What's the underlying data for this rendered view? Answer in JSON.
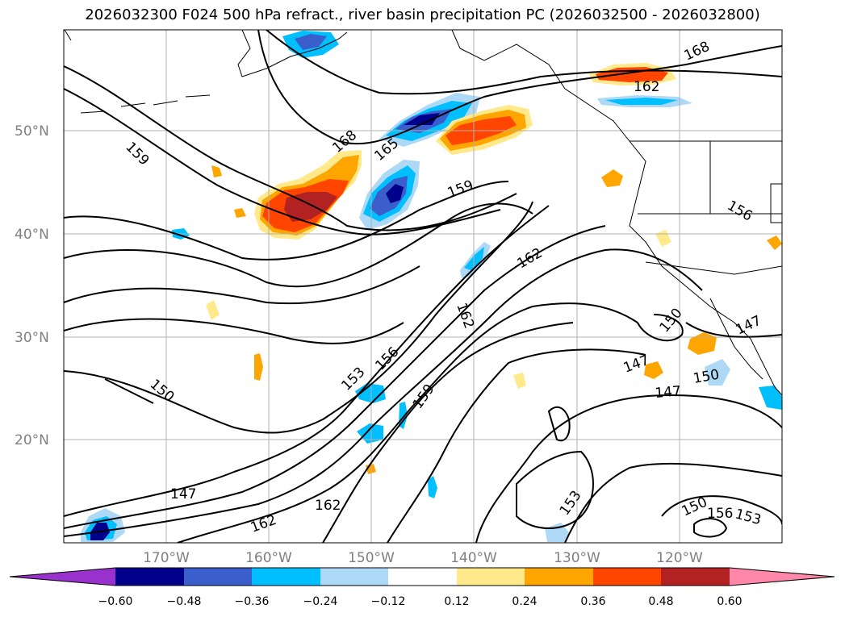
{
  "title": "2026032300 F024 500 hPa refract., river basin precipitation PC (2026032500 - 2026032800)",
  "map": {
    "lat_labels": [
      "50°N",
      "40°N",
      "30°N",
      "20°N"
    ],
    "lon_labels": [
      "170°W",
      "160°W",
      "150°W",
      "140°W",
      "130°W",
      "120°W"
    ],
    "contour_labels": [
      "159",
      "168",
      "165",
      "159",
      "162",
      "168",
      "162",
      "156",
      "162",
      "153",
      "156",
      "159",
      "150",
      "147",
      "150",
      "147",
      "147",
      "150",
      "162",
      "153",
      "147",
      "162",
      "150",
      "156",
      "153"
    ]
  },
  "colorbar": {
    "colors": [
      "#9932cc",
      "#00008b",
      "#3a5fcd",
      "#00bfff",
      "#add8f6",
      "#ffffff",
      "#ffe98a",
      "#ffa500",
      "#ff4500",
      "#b22222",
      "#ff88aa"
    ],
    "tick_labels": [
      "−0.60",
      "−0.48",
      "−0.36",
      "−0.24",
      "−0.12",
      "0.12",
      "0.24",
      "0.36",
      "0.48",
      "0.60"
    ]
  }
}
